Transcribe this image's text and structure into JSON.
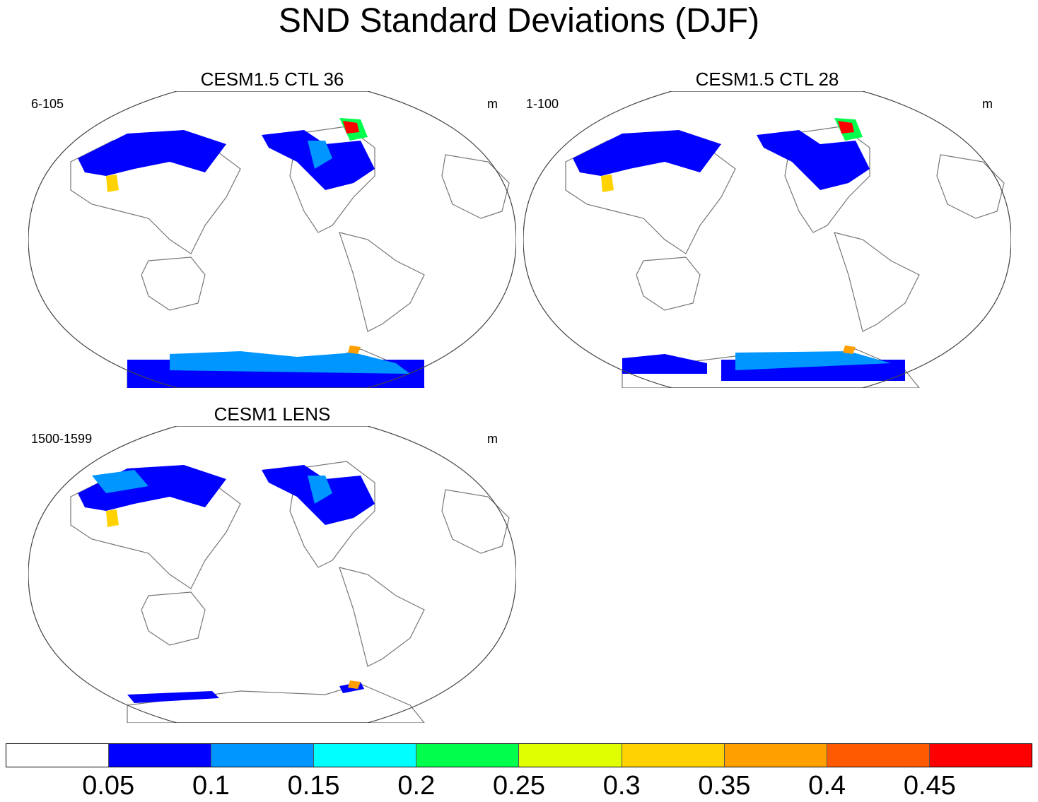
{
  "figure": {
    "title": "SND Standard Deviations (DJF)"
  },
  "panels": [
    {
      "title": "CESM1.5 CTL 36",
      "left_label": "6-105",
      "right_label": "m"
    },
    {
      "title": "CESM1.5 CTL 28",
      "left_label": "1-100",
      "right_label": "m"
    },
    {
      "title": "CESM1 LENS",
      "left_label": "1500-1599",
      "right_label": "m"
    }
  ],
  "colorbar": {
    "colors": [
      "#ffffff",
      "#0000ff",
      "#0096ff",
      "#00ffff",
      "#00ff4c",
      "#e0ff00",
      "#ffd200",
      "#ffa000",
      "#ff5a00",
      "#ff0000"
    ],
    "labels": [
      "0.05",
      "0.1",
      "0.15",
      "0.2",
      "0.25",
      "0.3",
      "0.35",
      "0.4",
      "0.45"
    ]
  },
  "chart_data": {
    "type": "map",
    "variable": "SND",
    "statistic": "Standard Deviation",
    "season": "DJF",
    "units": "m",
    "contour_levels": [
      0.05,
      0.1,
      0.15,
      0.2,
      0.25,
      0.3,
      0.35,
      0.4,
      0.45
    ]
  }
}
